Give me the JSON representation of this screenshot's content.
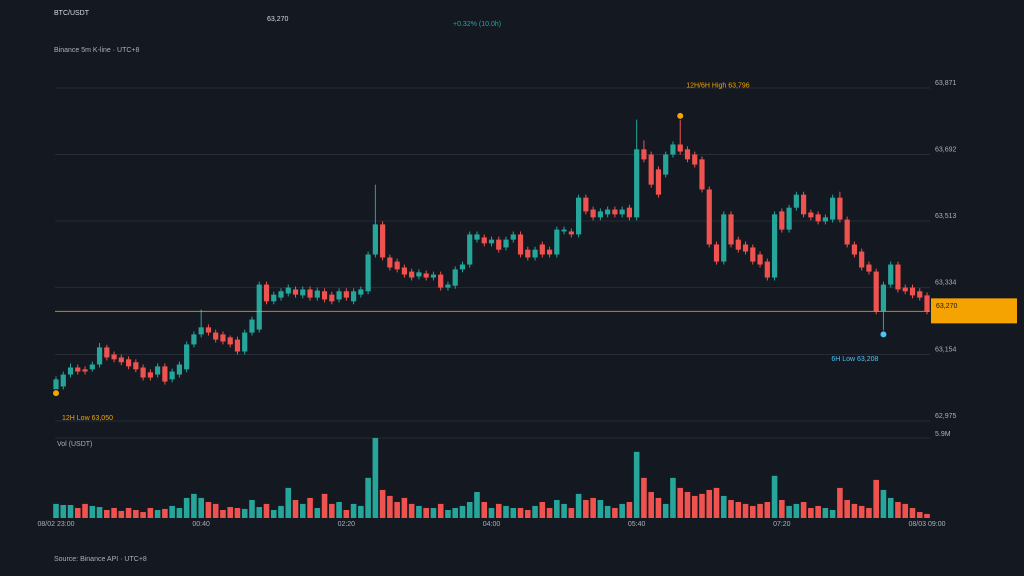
{
  "chart_data": {
    "type": "candlestick",
    "title": "BTC/USDT",
    "subtitle": "Binance 5m K-line · UTC+8",
    "change": "+0.32% (10.0h)",
    "source": "Source: Binance API · UTC+8",
    "volume_title": "Vol (USDT)",
    "last_price": {
      "value": 63270,
      "label": "63,270"
    },
    "up_color": "#26a69a",
    "down_color": "#ef5350",
    "price_line_color": "#f5a300",
    "grid": true,
    "ylim": [
      62975,
      63871
    ],
    "yticks": [
      {
        "value": 63871,
        "label": "63,871"
      },
      {
        "value": 63692,
        "label": "63,692"
      },
      {
        "value": 63513,
        "label": "63,513"
      },
      {
        "value": 63334,
        "label": "63,334"
      },
      {
        "value": 63154,
        "label": "63,154"
      },
      {
        "value": 62975,
        "label": "62,975"
      }
    ],
    "volume_lim": [
      0,
      5900000
    ],
    "volume_ticks": [
      {
        "value": 5900000,
        "label": "5.9M"
      }
    ],
    "markers": [
      {
        "label": "12H/6H High 63,796",
        "value": 63796,
        "color": "#f5a300"
      },
      {
        "label": "6H Low 63,208",
        "value": 63208,
        "color": "#4fc3f7"
      },
      {
        "label": "12H Low 63,050",
        "value": 63050,
        "color": "#f5a300"
      }
    ],
    "categories": [
      "08/02 23:00",
      null,
      null,
      null,
      null,
      null,
      null,
      null,
      null,
      null,
      null,
      null,
      null,
      null,
      null,
      null,
      null,
      null,
      null,
      null,
      "00:40",
      null,
      null,
      null,
      null,
      null,
      null,
      null,
      null,
      null,
      null,
      null,
      null,
      null,
      null,
      null,
      null,
      null,
      null,
      null,
      "02:20",
      null,
      null,
      null,
      null,
      null,
      null,
      null,
      null,
      null,
      null,
      null,
      null,
      null,
      null,
      null,
      null,
      null,
      null,
      null,
      "04:00",
      null,
      null,
      null,
      null,
      null,
      null,
      null,
      null,
      null,
      null,
      null,
      null,
      null,
      null,
      null,
      null,
      null,
      null,
      null,
      "05:40",
      null,
      null,
      null,
      null,
      null,
      null,
      null,
      null,
      null,
      null,
      null,
      null,
      null,
      null,
      null,
      null,
      null,
      null,
      null,
      "07:20",
      null,
      null,
      null,
      null,
      null,
      null,
      null,
      null,
      null,
      null,
      null,
      null,
      null,
      null,
      null,
      null,
      null,
      null,
      null,
      "08/03 09:00"
    ],
    "ohlc": [
      [
        63060,
        63095,
        63050,
        63087
      ],
      [
        63068,
        63108,
        63060,
        63100
      ],
      [
        63100,
        63130,
        63092,
        63119
      ],
      [
        63119,
        63127,
        63100,
        63108
      ],
      [
        63114,
        63122,
        63100,
        63108
      ],
      [
        63114,
        63135,
        63108,
        63127
      ],
      [
        63127,
        63185,
        63119,
        63173
      ],
      [
        63173,
        63180,
        63138,
        63146
      ],
      [
        63154,
        63162,
        63133,
        63141
      ],
      [
        63146,
        63154,
        63125,
        63133
      ],
      [
        63141,
        63149,
        63114,
        63122
      ],
      [
        63133,
        63141,
        63106,
        63114
      ],
      [
        63119,
        63127,
        63084,
        63092
      ],
      [
        63106,
        63114,
        63084,
        63092
      ],
      [
        63100,
        63130,
        63092,
        63122
      ],
      [
        63122,
        63130,
        63073,
        63081
      ],
      [
        63087,
        63116,
        63079,
        63108
      ],
      [
        63100,
        63135,
        63092,
        63127
      ],
      [
        63114,
        63189,
        63106,
        63181
      ],
      [
        63181,
        63216,
        63173,
        63208
      ],
      [
        63208,
        63275,
        63200,
        63227
      ],
      [
        63227,
        63235,
        63205,
        63213
      ],
      [
        63213,
        63221,
        63186,
        63194
      ],
      [
        63208,
        63216,
        63181,
        63189
      ],
      [
        63200,
        63205,
        63173,
        63181
      ],
      [
        63194,
        63202,
        63154,
        63162
      ],
      [
        63162,
        63221,
        63154,
        63213
      ],
      [
        63213,
        63256,
        63205,
        63248
      ],
      [
        63221,
        63350,
        63213,
        63342
      ],
      [
        63342,
        63350,
        63289,
        63297
      ],
      [
        63297,
        63323,
        63289,
        63315
      ],
      [
        63307,
        63332,
        63299,
        63324
      ],
      [
        63318,
        63342,
        63310,
        63334
      ],
      [
        63329,
        63337,
        63307,
        63315
      ],
      [
        63313,
        63337,
        63305,
        63329
      ],
      [
        63329,
        63337,
        63299,
        63307
      ],
      [
        63307,
        63334,
        63299,
        63326
      ],
      [
        63324,
        63332,
        63294,
        63302
      ],
      [
        63315,
        63323,
        63289,
        63297
      ],
      [
        63302,
        63332,
        63294,
        63324
      ],
      [
        63324,
        63332,
        63299,
        63307
      ],
      [
        63297,
        63332,
        63289,
        63324
      ],
      [
        63315,
        63337,
        63307,
        63329
      ],
      [
        63324,
        63431,
        63316,
        63423
      ],
      [
        63423,
        63611,
        63415,
        63504
      ],
      [
        63504,
        63512,
        63407,
        63415
      ],
      [
        63415,
        63423,
        63380,
        63388
      ],
      [
        63404,
        63412,
        63375,
        63383
      ],
      [
        63388,
        63396,
        63361,
        63369
      ],
      [
        63377,
        63385,
        63353,
        63361
      ],
      [
        63364,
        63383,
        63356,
        63375
      ],
      [
        63372,
        63380,
        63353,
        63361
      ],
      [
        63361,
        63377,
        63353,
        63369
      ],
      [
        63369,
        63377,
        63326,
        63334
      ],
      [
        63334,
        63350,
        63326,
        63342
      ],
      [
        63339,
        63391,
        63331,
        63383
      ],
      [
        63383,
        63404,
        63375,
        63396
      ],
      [
        63396,
        63485,
        63388,
        63477
      ],
      [
        63463,
        63485,
        63455,
        63477
      ],
      [
        63469,
        63477,
        63445,
        63453
      ],
      [
        63453,
        63471,
        63445,
        63463
      ],
      [
        63463,
        63471,
        63428,
        63436
      ],
      [
        63442,
        63471,
        63434,
        63463
      ],
      [
        63463,
        63485,
        63455,
        63477
      ],
      [
        63477,
        63485,
        63415,
        63423
      ],
      [
        63436,
        63444,
        63407,
        63415
      ],
      [
        63415,
        63444,
        63407,
        63436
      ],
      [
        63450,
        63458,
        63415,
        63423
      ],
      [
        63436,
        63444,
        63415,
        63423
      ],
      [
        63423,
        63498,
        63415,
        63490
      ],
      [
        63485,
        63498,
        63477,
        63490
      ],
      [
        63485,
        63493,
        63469,
        63477
      ],
      [
        63477,
        63584,
        63469,
        63576
      ],
      [
        63576,
        63584,
        63531,
        63539
      ],
      [
        63544,
        63552,
        63515,
        63523
      ],
      [
        63523,
        63547,
        63515,
        63539
      ],
      [
        63531,
        63552,
        63523,
        63544
      ],
      [
        63544,
        63552,
        63523,
        63531
      ],
      [
        63531,
        63552,
        63523,
        63544
      ],
      [
        63549,
        63557,
        63515,
        63523
      ],
      [
        63523,
        63786,
        63515,
        63706
      ],
      [
        63706,
        63730,
        63671,
        63679
      ],
      [
        63692,
        63700,
        63603,
        63611
      ],
      [
        63652,
        63660,
        63576,
        63584
      ],
      [
        63638,
        63700,
        63630,
        63692
      ],
      [
        63692,
        63727,
        63684,
        63719
      ],
      [
        63719,
        63796,
        63692,
        63700
      ],
      [
        63706,
        63714,
        63671,
        63679
      ],
      [
        63692,
        63700,
        63657,
        63665
      ],
      [
        63679,
        63687,
        63590,
        63598
      ],
      [
        63598,
        63606,
        63442,
        63450
      ],
      [
        63450,
        63458,
        63396,
        63404
      ],
      [
        63404,
        63539,
        63396,
        63531
      ],
      [
        63531,
        63539,
        63442,
        63450
      ],
      [
        63463,
        63471,
        63428,
        63436
      ],
      [
        63450,
        63458,
        63423,
        63431
      ],
      [
        63442,
        63450,
        63396,
        63404
      ],
      [
        63423,
        63431,
        63388,
        63396
      ],
      [
        63404,
        63412,
        63353,
        63361
      ],
      [
        63361,
        63539,
        63353,
        63531
      ],
      [
        63539,
        63547,
        63482,
        63490
      ],
      [
        63490,
        63557,
        63482,
        63549
      ],
      [
        63549,
        63592,
        63541,
        63584
      ],
      [
        63584,
        63592,
        63523,
        63531
      ],
      [
        63536,
        63544,
        63515,
        63523
      ],
      [
        63531,
        63539,
        63504,
        63512
      ],
      [
        63512,
        63531,
        63504,
        63523
      ],
      [
        63517,
        63584,
        63509,
        63576
      ],
      [
        63576,
        63592,
        63509,
        63517
      ],
      [
        63517,
        63525,
        63442,
        63450
      ],
      [
        63450,
        63458,
        63415,
        63423
      ],
      [
        63431,
        63439,
        63380,
        63388
      ],
      [
        63396,
        63404,
        63369,
        63377
      ],
      [
        63377,
        63385,
        63262,
        63270
      ],
      [
        63270,
        63350,
        63208,
        63342
      ],
      [
        63342,
        63404,
        63334,
        63396
      ],
      [
        63396,
        63404,
        63321,
        63329
      ],
      [
        63334,
        63342,
        63316,
        63324
      ],
      [
        63334,
        63342,
        63305,
        63313
      ],
      [
        63324,
        63332,
        63299,
        63307
      ],
      [
        63313,
        63321,
        63262,
        63270
      ]
    ],
    "volume": [
      1040000,
      960000,
      960000,
      740000,
      1040000,
      890000,
      810000,
      590000,
      740000,
      520000,
      740000,
      590000,
      440000,
      740000,
      590000,
      670000,
      890000,
      740000,
      1480000,
      1780000,
      1480000,
      1180000,
      1040000,
      590000,
      810000,
      740000,
      670000,
      1330000,
      810000,
      1040000,
      590000,
      890000,
      2220000,
      1330000,
      1040000,
      1480000,
      740000,
      1780000,
      1040000,
      1180000,
      590000,
      1040000,
      890000,
      2960000,
      5900000,
      2070000,
      1630000,
      1180000,
      1480000,
      1040000,
      890000,
      740000,
      740000,
      1040000,
      590000,
      740000,
      890000,
      1180000,
      1920000,
      1180000,
      740000,
      1040000,
      890000,
      740000,
      740000,
      590000,
      890000,
      1180000,
      740000,
      1330000,
      1040000,
      740000,
      1780000,
      1330000,
      1480000,
      1330000,
      890000,
      740000,
      1040000,
      1180000,
      4880000,
      2960000,
      1920000,
      1480000,
      1040000,
      2960000,
      2220000,
      1920000,
      1630000,
      1780000,
      2070000,
      2220000,
      1630000,
      1330000,
      1180000,
      1040000,
      890000,
      1040000,
      1180000,
      3110000,
      1330000,
      890000,
      1040000,
      1180000,
      740000,
      890000,
      740000,
      590000,
      2220000,
      1330000,
      1040000,
      890000,
      740000,
      2810000,
      2070000,
      1480000,
      1180000,
      1040000,
      740000,
      440000,
      300000
    ]
  }
}
